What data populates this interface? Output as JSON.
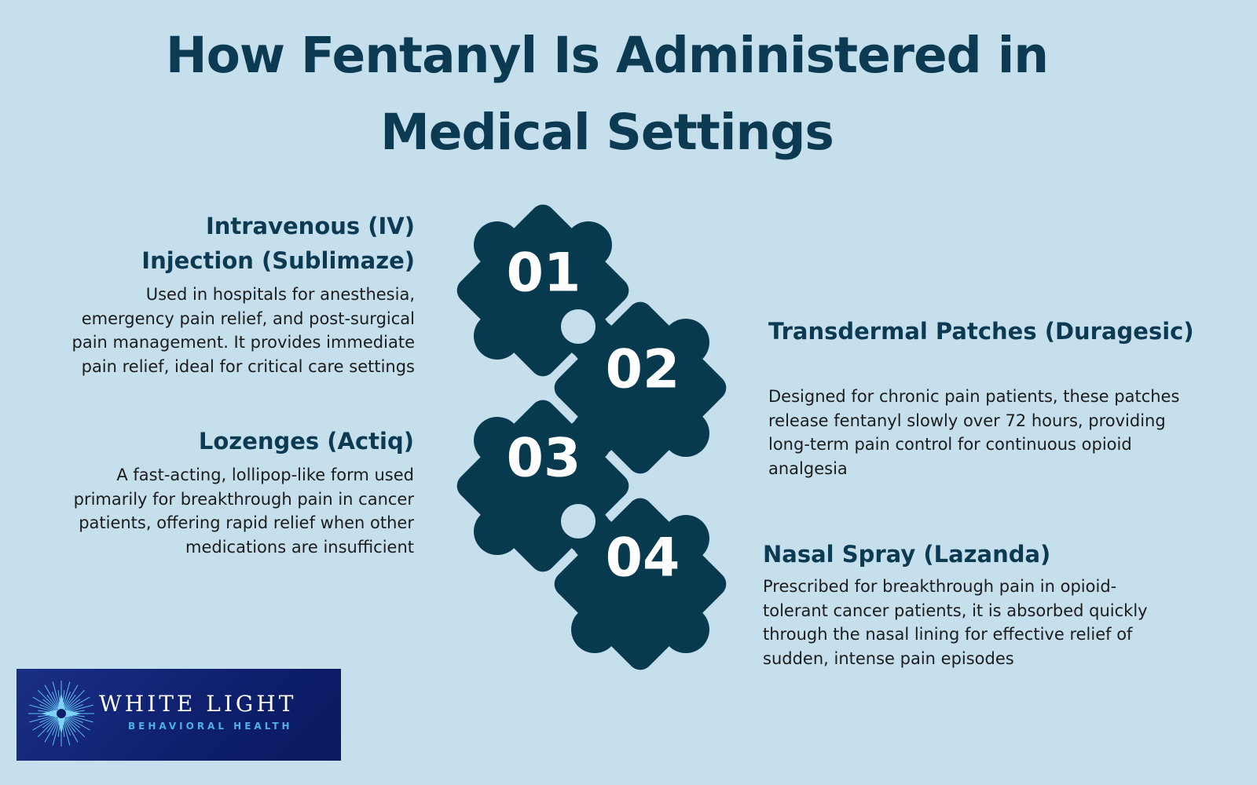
{
  "title": {
    "line1": "How Fentanyl Is Administered in",
    "line2": "Medical Settings"
  },
  "methods": [
    {
      "number": "01",
      "heading_line1": "Intravenous (IV)",
      "heading_line2": "Injection (Sublimaze)",
      "lines": [
        "Used in hospitals for anesthesia,",
        "emergency pain relief, and post-surgical",
        "pain management. It provides immediate",
        "pain relief, ideal for critical care settings"
      ]
    },
    {
      "number": "02",
      "heading": "Transdermal Patches (Duragesic)",
      "lines": [
        "Designed for chronic pain patients, these patches",
        "release fentanyl slowly over 72 hours, providing",
        "long-term pain control for continuous opioid",
        "analgesia"
      ]
    },
    {
      "number": "03",
      "heading": "Lozenges (Actiq)",
      "lines": [
        "A fast-acting, lollipop-like form used",
        "primarily for breakthrough pain in cancer",
        "patients, offering rapid relief when other",
        "medications are insufficient"
      ]
    },
    {
      "number": "04",
      "heading": "Nasal Spray (Lazanda)",
      "lines": [
        "Prescribed for breakthrough pain in opioid-",
        "tolerant cancer patients, it is absorbed quickly",
        "through the nasal lining for effective relief of",
        "sudden, intense pain episodes"
      ]
    }
  ],
  "logo": {
    "name": "WHITE LIGHT",
    "tagline": "BEHAVIORAL HEALTH",
    "icon": "starburst-icon"
  },
  "colors": {
    "background": "#c5dfed",
    "navy": "#0b3a52",
    "puzzle": "#083a4f",
    "logo_blue": "#0d1e6b"
  }
}
